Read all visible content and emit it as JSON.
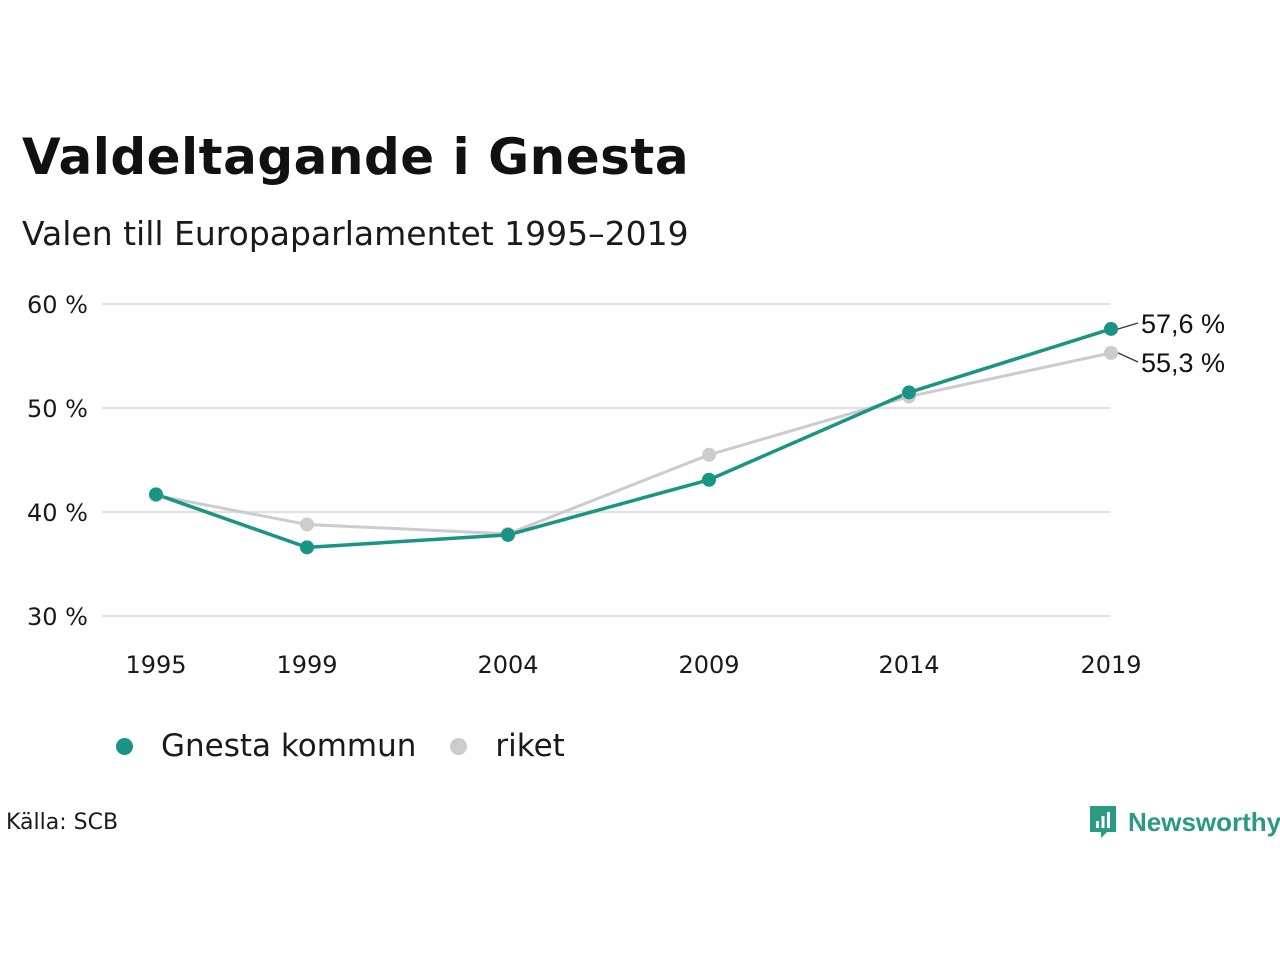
{
  "title": "Valdeltagande i Gnesta",
  "subtitle": "Valen till Europaparlamentet 1995–2019",
  "source": "Källa: SCB",
  "brand": {
    "name": "Newsworthy",
    "color": "#2a9a84"
  },
  "legend": [
    {
      "label": "Gnesta kommun",
      "color": "#1a9485"
    },
    {
      "label": "riket",
      "color": "#cccccc"
    }
  ],
  "chart_data": {
    "type": "line",
    "x": [
      "1995",
      "1999",
      "2004",
      "2009",
      "2014",
      "2019"
    ],
    "ylim": [
      30,
      60
    ],
    "yticks": [
      30,
      40,
      50,
      60
    ],
    "ytick_labels": [
      "30 %",
      "40 %",
      "50 %",
      "60 %"
    ],
    "grid": true,
    "legend_position": "bottom-left",
    "series": [
      {
        "name": "riket",
        "color": "#cccccc",
        "values": [
          41.6,
          38.8,
          37.9,
          45.5,
          51.1,
          55.3
        ]
      },
      {
        "name": "Gnesta kommun",
        "color": "#1a9485",
        "values": [
          41.7,
          36.6,
          37.8,
          43.1,
          51.5,
          57.6
        ]
      }
    ],
    "end_labels": [
      {
        "series": "Gnesta kommun",
        "text": "57,6 %"
      },
      {
        "series": "riket",
        "text": "55,3 %"
      }
    ]
  }
}
